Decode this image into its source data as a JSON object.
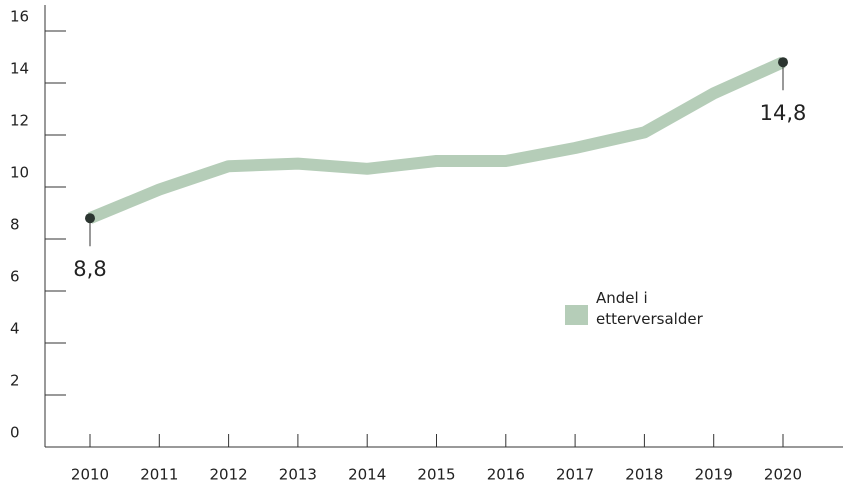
{
  "chart_data": {
    "type": "line",
    "x": [
      2010,
      2011,
      2012,
      2013,
      2014,
      2015,
      2016,
      2017,
      2018,
      2019,
      2020
    ],
    "series": [
      {
        "name": "Andel i etterversalder",
        "color": "#b5cdb8",
        "values": [
          8.8,
          9.9,
          10.8,
          10.9,
          10.7,
          11.0,
          11.0,
          11.5,
          12.1,
          13.6,
          14.8
        ],
        "value_labels": [
          "8,8",
          null,
          null,
          null,
          null,
          null,
          null,
          null,
          null,
          null,
          "14,8"
        ]
      }
    ],
    "ylim": [
      0,
      16
    ],
    "yticks": [
      0,
      2,
      4,
      6,
      8,
      10,
      12,
      14,
      16
    ],
    "xlim": [
      2010,
      2020
    ],
    "xticks": [
      2010,
      2011,
      2012,
      2013,
      2014,
      2015,
      2016,
      2017,
      2018,
      2019,
      2020
    ],
    "marker_color": "#2b3530",
    "legend": "right"
  }
}
